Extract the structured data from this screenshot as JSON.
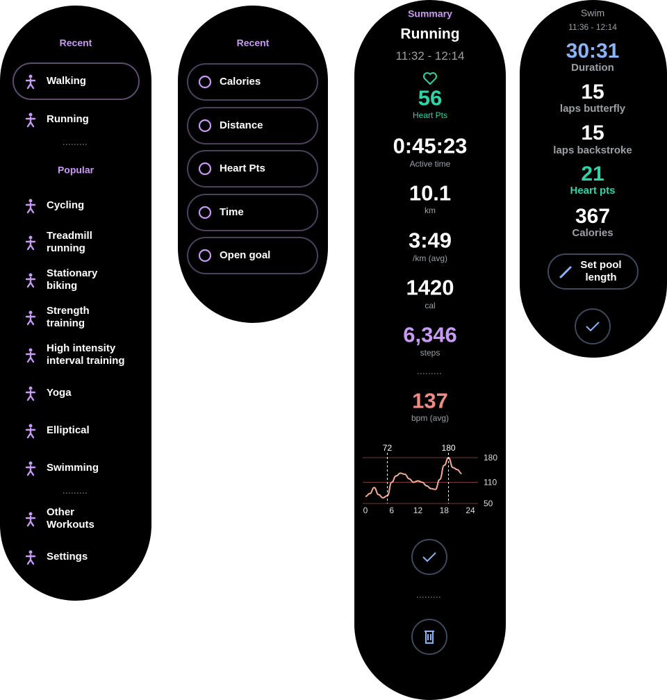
{
  "workout_list": {
    "recent_title": "Recent",
    "recent": [
      "Walking",
      "Running"
    ],
    "popular_title": "Popular",
    "popular": [
      "Cycling",
      "Treadmill running",
      "Stationary biking",
      "Strength training",
      "High intensity interval training",
      "Yoga",
      "Elliptical",
      "Swimming"
    ],
    "more": [
      "Other Workouts",
      "Settings"
    ]
  },
  "goal_list": {
    "title": "Recent",
    "goals": [
      "Calories",
      "Distance",
      "Heart Pts",
      "Time",
      "Open goal"
    ]
  },
  "summary": {
    "label": "Summary",
    "title": "Running",
    "time": "11:32 - 12:14",
    "stats": [
      {
        "value": "56",
        "label": "Heart Pts",
        "color": "#2fd3a8"
      },
      {
        "value": "0:45:23",
        "label": "Active time",
        "color": "#ffffff"
      },
      {
        "value": "10.1",
        "label": "km",
        "color": "#ffffff"
      },
      {
        "value": "3:49",
        "label": "/km (avg)",
        "color": "#ffffff"
      },
      {
        "value": "1420",
        "label": "cal",
        "color": "#ffffff"
      },
      {
        "value": "6,346",
        "label": "steps",
        "color": "#c99af5"
      },
      {
        "value": "137",
        "label": "bpm (avg)",
        "color": "#f28b82"
      }
    ]
  },
  "chart_data": {
    "type": "line",
    "x": [
      0,
      1,
      2,
      3,
      4,
      5,
      6,
      7,
      8,
      9,
      10,
      11,
      12,
      13,
      14,
      15,
      16,
      17,
      18,
      19,
      20,
      21,
      22
    ],
    "series": [
      {
        "color": "#f6ad93",
        "values": [
          70,
          78,
          95,
          75,
          66,
          72,
          110,
          128,
          136,
          133,
          120,
          110,
          114,
          110,
          100,
          92,
          90,
          118,
          158,
          180,
          152,
          146,
          135
        ]
      }
    ],
    "xlim": [
      0,
      24
    ],
    "xticks": [
      0,
      6,
      12,
      18,
      24
    ],
    "ylim": [
      50,
      180
    ],
    "yticks": [
      50,
      110,
      180
    ],
    "grid": true,
    "annotations": [
      {
        "x": 5,
        "y": 72
      },
      {
        "x": 19,
        "y": 180
      }
    ]
  },
  "swim": {
    "title": "Swim",
    "time": "11:36 - 12:14",
    "stats": [
      {
        "value": "30:31",
        "label": "Duration",
        "color": "#8ab4f8"
      },
      {
        "value": "15",
        "label": "laps butterfly",
        "color": "#ffffff"
      },
      {
        "value": "15",
        "label": "laps backstroke",
        "color": "#ffffff"
      },
      {
        "value": "21",
        "label": "Heart pts",
        "color": "#2fd3a8"
      },
      {
        "value": "367",
        "label": "Calories",
        "color": "#ffffff"
      }
    ],
    "button": "Set pool length"
  }
}
